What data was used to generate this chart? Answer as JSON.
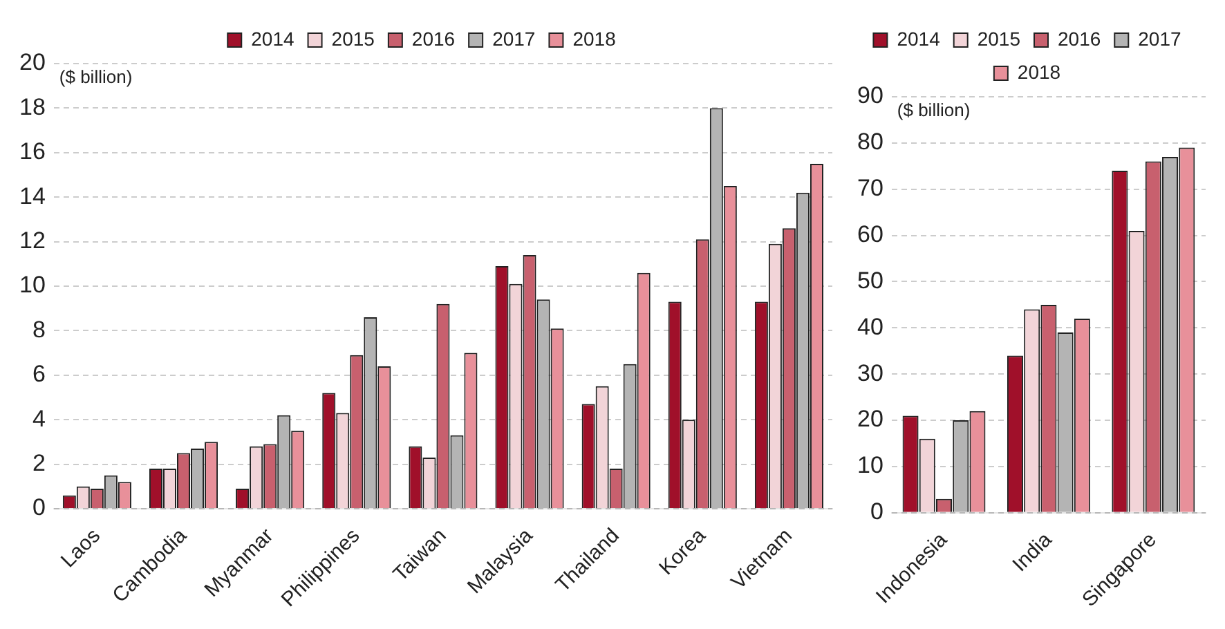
{
  "chart_data": [
    {
      "type": "bar",
      "ylabel": "($ billion)",
      "categories": [
        "Laos",
        "Cambodia",
        "Myanmar",
        "Philippines",
        "Taiwan",
        "Malaysia",
        "Thailand",
        "Korea",
        "Vietnam"
      ],
      "series": [
        {
          "name": "2014",
          "color": "#a0102a",
          "values": [
            0.6,
            1.8,
            0.9,
            5.2,
            2.8,
            10.9,
            4.7,
            9.3,
            9.3
          ]
        },
        {
          "name": "2015",
          "color": "#f2d4d8",
          "values": [
            1.0,
            1.8,
            2.8,
            4.3,
            2.3,
            10.1,
            5.5,
            4.0,
            11.9
          ]
        },
        {
          "name": "2016",
          "color": "#c8606e",
          "values": [
            0.9,
            2.5,
            2.9,
            6.9,
            9.2,
            11.4,
            1.8,
            12.1,
            12.6
          ]
        },
        {
          "name": "2017",
          "color": "#b4b4b4",
          "values": [
            1.5,
            2.7,
            4.2,
            8.6,
            3.3,
            9.4,
            6.5,
            18.0,
            14.2
          ]
        },
        {
          "name": "2018",
          "color": "#e8909a",
          "values": [
            1.2,
            3.0,
            3.5,
            6.4,
            7.0,
            8.1,
            10.6,
            14.5,
            15.5
          ]
        }
      ],
      "ylim": [
        0,
        20
      ],
      "yticks": [
        0,
        2,
        4,
        6,
        8,
        10,
        12,
        14,
        16,
        18,
        20
      ],
      "grid": "y",
      "legend": "top"
    },
    {
      "type": "bar",
      "ylabel": "($ billion)",
      "categories": [
        "Indonesia",
        "India",
        "Singapore"
      ],
      "series": [
        {
          "name": "2014",
          "color": "#a0102a",
          "values": [
            21,
            34,
            74
          ]
        },
        {
          "name": "2015",
          "color": "#f2d4d8",
          "values": [
            16,
            44,
            61
          ]
        },
        {
          "name": "2016",
          "color": "#c8606e",
          "values": [
            3,
            45,
            76
          ]
        },
        {
          "name": "2017",
          "color": "#b4b4b4",
          "values": [
            20,
            39,
            77
          ]
        },
        {
          "name": "2018",
          "color": "#e8909a",
          "values": [
            22,
            42,
            79
          ]
        }
      ],
      "ylim": [
        0,
        90
      ],
      "yticks": [
        0,
        10,
        20,
        30,
        40,
        50,
        60,
        70,
        80,
        90
      ],
      "grid": "y",
      "legend": "top"
    }
  ]
}
